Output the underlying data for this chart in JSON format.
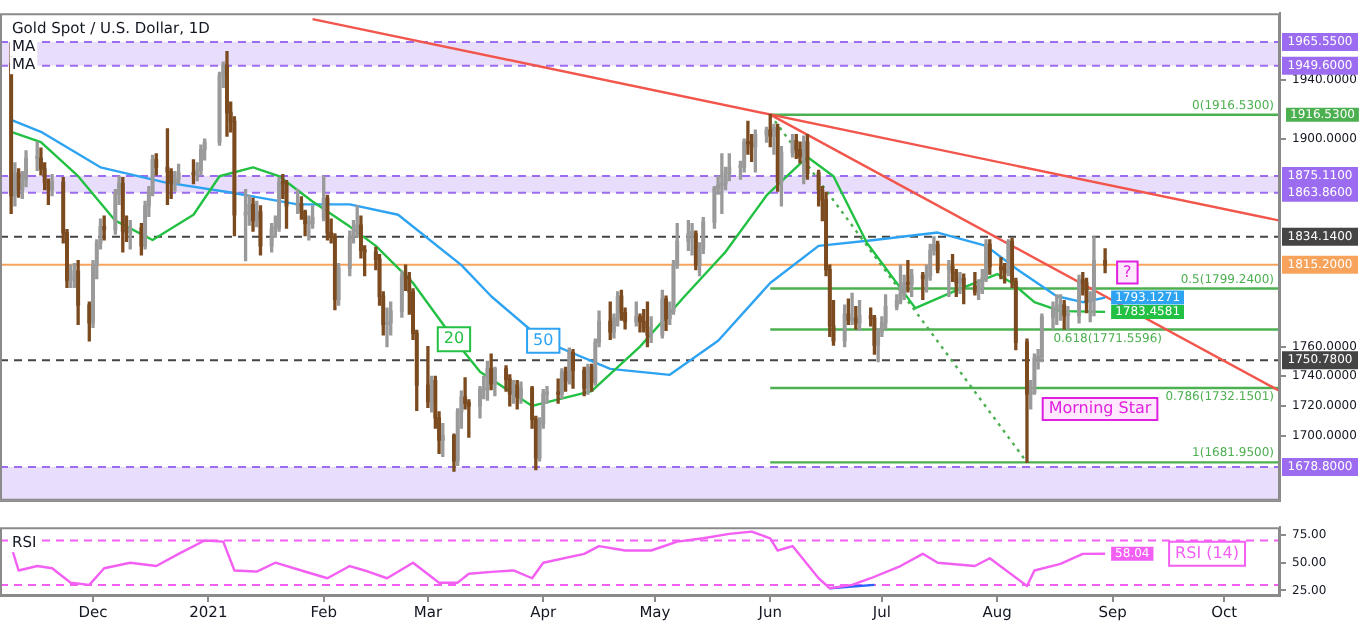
{
  "chart_data": [
    {
      "type": "candlestick",
      "title": "Gold Spot / U.S. Dollar, 1D",
      "annotations": [
        "MA",
        "MA",
        {
          "text": "Morning Star",
          "x": "2021-08-10",
          "y": 1718
        },
        {
          "text": "?",
          "x": "2021-08-30",
          "y": 1810
        }
      ],
      "x": [
        "2020-11-09",
        "2020-11-10",
        "2020-11-11",
        "2020-11-12",
        "2020-11-13",
        "2020-11-16",
        "2020-11-17",
        "2020-11-18",
        "2020-11-19",
        "2020-11-20",
        "2020-11-23",
        "2020-11-24",
        "2020-11-25",
        "2020-11-26",
        "2020-11-27",
        "2020-11-30",
        "2020-12-01",
        "2020-12-02",
        "2020-12-03",
        "2020-12-04",
        "2020-12-07",
        "2020-12-08",
        "2020-12-09",
        "2020-12-10",
        "2020-12-11",
        "2020-12-14",
        "2020-12-15",
        "2020-12-16",
        "2020-12-17",
        "2020-12-18",
        "2020-12-21",
        "2020-12-22",
        "2020-12-23",
        "2020-12-24",
        "2020-12-28",
        "2020-12-29",
        "2020-12-30",
        "2020-12-31",
        "2021-01-04",
        "2021-01-05",
        "2021-01-06",
        "2021-01-07",
        "2021-01-08",
        "2021-01-11",
        "2021-01-12",
        "2021-01-13",
        "2021-01-14",
        "2021-01-15",
        "2021-01-18",
        "2021-01-19",
        "2021-01-20",
        "2021-01-21",
        "2021-01-22",
        "2021-01-25",
        "2021-01-26",
        "2021-01-27",
        "2021-01-28",
        "2021-01-29",
        "2021-02-01",
        "2021-02-02",
        "2021-02-03",
        "2021-02-04",
        "2021-02-05",
        "2021-02-08",
        "2021-02-09",
        "2021-02-10",
        "2021-02-11",
        "2021-02-12",
        "2021-02-15",
        "2021-02-16",
        "2021-02-17",
        "2021-02-18",
        "2021-02-19",
        "2021-02-22",
        "2021-02-23",
        "2021-02-24",
        "2021-02-25",
        "2021-02-26",
        "2021-03-01",
        "2021-03-02",
        "2021-03-03",
        "2021-03-04",
        "2021-03-05",
        "2021-03-08",
        "2021-03-09",
        "2021-03-10",
        "2021-03-11",
        "2021-03-12",
        "2021-03-15",
        "2021-03-16",
        "2021-03-17",
        "2021-03-18",
        "2021-03-19",
        "2021-03-22",
        "2021-03-23",
        "2021-03-24",
        "2021-03-25",
        "2021-03-26",
        "2021-03-29",
        "2021-03-30",
        "2021-03-31",
        "2021-04-01",
        "2021-04-02",
        "2021-04-05",
        "2021-04-06",
        "2021-04-07",
        "2021-04-08",
        "2021-04-09",
        "2021-04-12",
        "2021-04-13",
        "2021-04-14",
        "2021-04-15",
        "2021-04-16",
        "2021-04-19",
        "2021-04-20",
        "2021-04-21",
        "2021-04-22",
        "2021-04-23",
        "2021-04-26",
        "2021-04-27",
        "2021-04-28",
        "2021-04-29",
        "2021-04-30",
        "2021-05-03",
        "2021-05-04",
        "2021-05-05",
        "2021-05-06",
        "2021-05-07",
        "2021-05-10",
        "2021-05-11",
        "2021-05-12",
        "2021-05-13",
        "2021-05-14",
        "2021-05-17",
        "2021-05-18",
        "2021-05-19",
        "2021-05-20",
        "2021-05-21",
        "2021-05-24",
        "2021-05-25",
        "2021-05-26",
        "2021-05-27",
        "2021-05-28",
        "2021-05-31",
        "2021-06-01",
        "2021-06-02",
        "2021-06-03",
        "2021-06-04",
        "2021-06-07",
        "2021-06-08",
        "2021-06-09",
        "2021-06-10",
        "2021-06-11",
        "2021-06-14",
        "2021-06-15",
        "2021-06-16",
        "2021-06-17",
        "2021-06-18",
        "2021-06-21",
        "2021-06-22",
        "2021-06-23",
        "2021-06-24",
        "2021-06-25",
        "2021-06-28",
        "2021-06-29",
        "2021-06-30",
        "2021-07-01",
        "2021-07-02",
        "2021-07-05",
        "2021-07-06",
        "2021-07-07",
        "2021-07-08",
        "2021-07-09",
        "2021-07-12",
        "2021-07-13",
        "2021-07-14",
        "2021-07-15",
        "2021-07-16",
        "2021-07-19",
        "2021-07-20",
        "2021-07-21",
        "2021-07-22",
        "2021-07-23",
        "2021-07-26",
        "2021-07-27",
        "2021-07-28",
        "2021-07-29",
        "2021-07-30",
        "2021-08-02",
        "2021-08-03",
        "2021-08-04",
        "2021-08-05",
        "2021-08-06",
        "2021-08-09",
        "2021-08-10",
        "2021-08-11",
        "2021-08-12",
        "2021-08-13",
        "2021-08-16",
        "2021-08-17",
        "2021-08-18",
        "2021-08-19",
        "2021-08-20",
        "2021-08-23",
        "2021-08-24",
        "2021-08-25",
        "2021-08-26",
        "2021-08-27",
        "2021-08-30"
      ],
      "ohlc": [
        [
          1951,
          1965,
          1850,
          1862
        ],
        [
          1862,
          1884,
          1855,
          1877
        ],
        [
          1877,
          1880,
          1861,
          1866
        ],
        [
          1866,
          1878,
          1860,
          1873
        ],
        [
          1873,
          1892,
          1868,
          1887
        ],
        [
          1887,
          1898,
          1879,
          1887
        ],
        [
          1887,
          1894,
          1876,
          1880
        ],
        [
          1880,
          1884,
          1866,
          1871
        ],
        [
          1871,
          1873,
          1856,
          1866
        ],
        [
          1866,
          1876,
          1862,
          1871
        ],
        [
          1871,
          1874,
          1830,
          1837
        ],
        [
          1837,
          1839,
          1800,
          1805
        ],
        [
          1805,
          1815,
          1800,
          1806
        ],
        [
          1806,
          1816,
          1800,
          1811
        ],
        [
          1811,
          1818,
          1775,
          1788
        ],
        [
          1788,
          1790,
          1764,
          1776
        ],
        [
          1776,
          1818,
          1773,
          1815
        ],
        [
          1815,
          1832,
          1806,
          1830
        ],
        [
          1830,
          1846,
          1826,
          1841
        ],
        [
          1841,
          1848,
          1832,
          1839
        ],
        [
          1839,
          1866,
          1836,
          1863
        ],
        [
          1863,
          1875,
          1856,
          1870
        ],
        [
          1870,
          1874,
          1824,
          1838
        ],
        [
          1838,
          1848,
          1831,
          1837
        ],
        [
          1837,
          1845,
          1826,
          1840
        ],
        [
          1840,
          1843,
          1822,
          1828
        ],
        [
          1828,
          1858,
          1826,
          1855
        ],
        [
          1855,
          1868,
          1848,
          1864
        ],
        [
          1864,
          1889,
          1862,
          1886
        ],
        [
          1886,
          1890,
          1876,
          1881
        ],
        [
          1881,
          1907,
          1856,
          1878
        ],
        [
          1878,
          1880,
          1860,
          1871
        ],
        [
          1871,
          1878,
          1865,
          1873
        ],
        [
          1873,
          1883,
          1870,
          1877
        ],
        [
          1877,
          1886,
          1870,
          1876
        ],
        [
          1876,
          1884,
          1872,
          1879
        ],
        [
          1879,
          1896,
          1876,
          1893
        ],
        [
          1893,
          1900,
          1886,
          1898
        ],
        [
          1898,
          1945,
          1896,
          1943
        ],
        [
          1943,
          1952,
          1935,
          1950
        ],
        [
          1950,
          1959,
          1902,
          1918
        ],
        [
          1918,
          1925,
          1905,
          1912
        ],
        [
          1912,
          1915,
          1835,
          1849
        ],
        [
          1849,
          1866,
          1818,
          1850
        ],
        [
          1850,
          1862,
          1842,
          1856
        ],
        [
          1856,
          1860,
          1838,
          1845
        ],
        [
          1845,
          1858,
          1841,
          1851
        ],
        [
          1851,
          1855,
          1822,
          1828
        ],
        [
          1828,
          1843,
          1824,
          1840
        ],
        [
          1840,
          1848,
          1834,
          1840
        ],
        [
          1840,
          1874,
          1838,
          1871
        ],
        [
          1871,
          1876,
          1860,
          1870
        ],
        [
          1870,
          1872,
          1840,
          1855
        ],
        [
          1855,
          1866,
          1850,
          1856
        ],
        [
          1856,
          1861,
          1846,
          1851
        ],
        [
          1851,
          1852,
          1835,
          1843
        ],
        [
          1843,
          1848,
          1832,
          1843
        ],
        [
          1843,
          1855,
          1840,
          1847
        ],
        [
          1847,
          1875,
          1845,
          1860
        ],
        [
          1860,
          1862,
          1832,
          1837
        ],
        [
          1837,
          1846,
          1830,
          1834
        ],
        [
          1834,
          1836,
          1785,
          1792
        ],
        [
          1792,
          1816,
          1788,
          1813
        ],
        [
          1813,
          1838,
          1808,
          1834
        ],
        [
          1834,
          1845,
          1830,
          1838
        ],
        [
          1838,
          1855,
          1834,
          1842
        ],
        [
          1842,
          1848,
          1820,
          1825
        ],
        [
          1825,
          1828,
          1808,
          1824
        ],
        [
          1824,
          1827,
          1812,
          1819
        ],
        [
          1819,
          1822,
          1788,
          1794
        ],
        [
          1794,
          1797,
          1768,
          1775
        ],
        [
          1775,
          1786,
          1760,
          1776
        ],
        [
          1776,
          1790,
          1768,
          1784
        ],
        [
          1784,
          1811,
          1780,
          1808
        ],
        [
          1808,
          1815,
          1798,
          1806
        ],
        [
          1806,
          1810,
          1782,
          1797
        ],
        [
          1797,
          1799,
          1765,
          1769
        ],
        [
          1769,
          1771,
          1717,
          1734
        ],
        [
          1734,
          1760,
          1719,
          1723
        ],
        [
          1723,
          1740,
          1716,
          1737
        ],
        [
          1737,
          1740,
          1705,
          1712
        ],
        [
          1712,
          1716,
          1688,
          1697
        ],
        [
          1697,
          1708,
          1686,
          1700
        ],
        [
          1700,
          1701,
          1676,
          1683
        ],
        [
          1683,
          1718,
          1680,
          1716
        ],
        [
          1716,
          1730,
          1705,
          1726
        ],
        [
          1726,
          1739,
          1718,
          1722
        ],
        [
          1722,
          1724,
          1699,
          1720
        ],
        [
          1720,
          1733,
          1712,
          1731
        ],
        [
          1731,
          1740,
          1725,
          1732
        ],
        [
          1731,
          1750,
          1724,
          1745
        ],
        [
          1745,
          1755,
          1731,
          1735
        ],
        [
          1735,
          1746,
          1727,
          1745
        ],
        [
          1745,
          1747,
          1730,
          1738
        ],
        [
          1738,
          1741,
          1720,
          1728
        ],
        [
          1728,
          1737,
          1722,
          1734
        ],
        [
          1734,
          1737,
          1718,
          1726
        ],
        [
          1726,
          1736,
          1722,
          1732
        ],
        [
          1732,
          1733,
          1705,
          1711
        ],
        [
          1711,
          1713,
          1677,
          1685
        ],
        [
          1685,
          1712,
          1683,
          1708
        ],
        [
          1708,
          1731,
          1705,
          1728
        ],
        [
          1728,
          1733,
          1722,
          1729
        ],
        [
          1729,
          1738,
          1722,
          1728
        ],
        [
          1728,
          1745,
          1725,
          1743
        ],
        [
          1743,
          1746,
          1730,
          1737
        ],
        [
          1737,
          1759,
          1735,
          1756
        ],
        [
          1756,
          1758,
          1732,
          1744
        ],
        [
          1744,
          1746,
          1727,
          1732
        ],
        [
          1732,
          1748,
          1728,
          1746
        ],
        [
          1746,
          1748,
          1730,
          1736
        ],
        [
          1736,
          1765,
          1734,
          1763
        ],
        [
          1763,
          1784,
          1760,
          1777
        ],
        [
          1777,
          1790,
          1765,
          1770
        ],
        [
          1770,
          1782,
          1766,
          1779
        ],
        [
          1779,
          1797,
          1774,
          1794
        ],
        [
          1794,
          1798,
          1778,
          1783
        ],
        [
          1783,
          1786,
          1772,
          1777
        ],
        [
          1777,
          1790,
          1774,
          1780
        ],
        [
          1780,
          1782,
          1770,
          1777
        ],
        [
          1777,
          1785,
          1770,
          1773
        ],
        [
          1773,
          1790,
          1760,
          1768
        ],
        [
          1768,
          1780,
          1763,
          1769
        ],
        [
          1768,
          1798,
          1766,
          1792
        ],
        [
          1792,
          1794,
          1771,
          1779
        ],
        [
          1779,
          1790,
          1775,
          1784
        ],
        [
          1784,
          1818,
          1782,
          1815
        ],
        [
          1815,
          1843,
          1813,
          1831
        ],
        [
          1831,
          1845,
          1825,
          1836
        ],
        [
          1836,
          1843,
          1822,
          1836
        ],
        [
          1836,
          1838,
          1812,
          1815
        ],
        [
          1815,
          1830,
          1808,
          1826
        ],
        [
          1826,
          1847,
          1823,
          1844
        ],
        [
          1844,
          1868,
          1840,
          1867
        ],
        [
          1867,
          1875,
          1863,
          1869
        ],
        [
          1869,
          1890,
          1850,
          1870
        ],
        [
          1870,
          1881,
          1866,
          1877
        ],
        [
          1877,
          1890,
          1872,
          1881
        ],
        [
          1881,
          1885,
          1873,
          1881
        ],
        [
          1881,
          1900,
          1878,
          1898
        ],
        [
          1898,
          1912,
          1890,
          1897
        ],
        [
          1897,
          1903,
          1885,
          1895
        ],
        [
          1895,
          1906,
          1878,
          1903
        ],
        [
          1903,
          1908,
          1898,
          1906
        ],
        [
          1906,
          1916.53,
          1895,
          1902
        ],
        [
          1902,
          1910,
          1890,
          1908
        ],
        [
          1908,
          1910,
          1865,
          1871
        ],
        [
          1871,
          1895,
          1855,
          1891
        ],
        [
          1891,
          1903,
          1888,
          1899
        ],
        [
          1899,
          1903,
          1887,
          1893
        ],
        [
          1893,
          1898,
          1884,
          1888
        ],
        [
          1888,
          1902,
          1870,
          1898
        ],
        [
          1898,
          1903,
          1873,
          1877
        ],
        [
          1877,
          1879,
          1855,
          1866
        ],
        [
          1866,
          1868,
          1845,
          1859
        ],
        [
          1859,
          1864,
          1808,
          1812
        ],
        [
          1812,
          1815,
          1767,
          1774
        ],
        [
          1774,
          1791,
          1761,
          1764
        ],
        [
          1764,
          1788,
          1760,
          1782
        ],
        [
          1782,
          1792,
          1775,
          1778
        ],
        [
          1778,
          1796,
          1775,
          1779
        ],
        [
          1779,
          1787,
          1772,
          1776
        ],
        [
          1776,
          1791,
          1771,
          1781
        ],
        [
          1781,
          1786,
          1774,
          1779
        ],
        [
          1779,
          1781,
          1755,
          1761
        ],
        [
          1761,
          1772,
          1750,
          1770
        ],
        [
          1770,
          1780,
          1767,
          1776
        ],
        [
          1776,
          1795,
          1772,
          1787
        ],
        [
          1787,
          1795,
          1785,
          1791
        ],
        [
          1791,
          1815,
          1789,
          1796
        ],
        [
          1796,
          1808,
          1792,
          1803
        ],
        [
          1803,
          1818,
          1797,
          1802
        ],
        [
          1802,
          1812,
          1794,
          1808
        ],
        [
          1808,
          1810,
          1792,
          1806
        ],
        [
          1806,
          1815,
          1797,
          1808
        ],
        [
          1808,
          1829,
          1805,
          1825
        ],
        [
          1825,
          1834,
          1822,
          1829
        ],
        [
          1829,
          1831,
          1810,
          1812
        ],
        [
          1812,
          1818,
          1794,
          1814
        ],
        [
          1814,
          1822,
          1804,
          1810
        ],
        [
          1810,
          1812,
          1794,
          1803
        ],
        [
          1803,
          1810,
          1796,
          1806
        ],
        [
          1806,
          1809,
          1789,
          1801
        ],
        [
          1801,
          1810,
          1795,
          1797
        ],
        [
          1797,
          1805,
          1792,
          1799
        ],
        [
          1799,
          1812,
          1796,
          1806
        ],
        [
          1806,
          1832,
          1804,
          1829
        ],
        [
          1829,
          1832,
          1809,
          1814
        ],
        [
          1814,
          1820,
          1806,
          1812
        ],
        [
          1812,
          1816,
          1803,
          1810
        ],
        [
          1810,
          1832,
          1808,
          1831
        ],
        [
          1831,
          1833,
          1800,
          1804
        ],
        [
          1804,
          1806,
          1758,
          1763
        ],
        [
          1763,
          1765,
          1681.95,
          1728
        ],
        [
          1728,
          1737,
          1718,
          1729
        ],
        [
          1729,
          1755,
          1728,
          1752
        ],
        [
          1752,
          1758,
          1745,
          1753
        ],
        [
          1753,
          1782,
          1750,
          1780
        ],
        [
          1780,
          1790,
          1772,
          1786
        ],
        [
          1786,
          1795,
          1775,
          1787
        ],
        [
          1787,
          1795,
          1778,
          1788
        ],
        [
          1788,
          1791,
          1772,
          1781
        ],
        [
          1781,
          1787,
          1772,
          1781
        ],
        [
          1781,
          1808,
          1776,
          1805
        ],
        [
          1805,
          1810,
          1795,
          1803
        ],
        [
          1803,
          1806,
          1783,
          1790
        ],
        [
          1790,
          1797,
          1777,
          1792
        ],
        [
          1792,
          1834,
          1781,
          1818
        ],
        [
          1818,
          1826,
          1810,
          1815.2
        ]
      ],
      "series": [
        {
          "name": "20",
          "type": "line",
          "color": "#22c043",
          "x": [
            "2020-11-09",
            "2020-11-17",
            "2020-11-27",
            "2020-12-07",
            "2020-12-17",
            "2020-12-28",
            "2021-01-04",
            "2021-01-13",
            "2021-01-20",
            "2021-01-29",
            "2021-02-08",
            "2021-02-15",
            "2021-02-25",
            "2021-03-08",
            "2021-03-15",
            "2021-03-29",
            "2021-04-14",
            "2021-04-27",
            "2021-05-09",
            "2021-05-20",
            "2021-05-31",
            "2021-06-11",
            "2021-06-18",
            "2021-06-27",
            "2021-07-10",
            "2021-07-21",
            "2021-08-01",
            "2021-08-05",
            "2021-08-11",
            "2021-08-18",
            "2021-08-30"
          ],
          "values": [
            1905,
            1898,
            1875,
            1845,
            1832,
            1849,
            1875,
            1881,
            1875,
            1858,
            1841,
            1828,
            1803,
            1765,
            1743,
            1720,
            1730,
            1760,
            1794,
            1824,
            1862,
            1888,
            1875,
            1830,
            1786,
            1798,
            1809,
            1803,
            1790,
            1784,
            1783.4581
          ],
          "value_labels": [
            null,
            null,
            null,
            null,
            null,
            null,
            null,
            null,
            null,
            null,
            null,
            null,
            null,
            null,
            null,
            null,
            null,
            null,
            null,
            null,
            null,
            null,
            null,
            null,
            null,
            null,
            null,
            null,
            null,
            null,
            "1783.4581"
          ]
        },
        {
          "name": "50",
          "type": "line",
          "color": "#2ea3f2",
          "x": [
            "2020-11-09",
            "2020-11-17",
            "2020-12-03",
            "2020-12-20",
            "2021-01-07",
            "2021-01-25",
            "2021-02-08",
            "2021-02-21",
            "2021-03-10",
            "2021-03-18",
            "2021-04-01",
            "2021-04-19",
            "2021-05-05",
            "2021-05-18",
            "2021-06-01",
            "2021-06-14",
            "2021-06-29",
            "2021-07-16",
            "2021-07-29",
            "2021-08-07",
            "2021-08-17",
            "2021-08-24",
            "2021-08-30"
          ],
          "values": [
            1913,
            1905,
            1881,
            1871,
            1864,
            1856,
            1856,
            1849,
            1815,
            1794,
            1764,
            1745,
            1741,
            1764,
            1803,
            1828,
            1832,
            1837,
            1828,
            1811,
            1794,
            1790,
            1793.1271
          ],
          "value_labels": [
            null,
            null,
            null,
            null,
            null,
            null,
            null,
            null,
            null,
            null,
            null,
            null,
            null,
            null,
            null,
            null,
            null,
            null,
            null,
            null,
            null,
            null,
            "1793.1271"
          ]
        },
        {
          "type": "line",
          "color": "#f2554b",
          "x": [
            "2021-01-29",
            "2021-10-16"
          ],
          "values": [
            1981,
            1845
          ]
        },
        {
          "type": "line",
          "color": "#f2554b",
          "x": [
            "2021-06-01",
            "2021-10-16"
          ],
          "values": [
            1916.53,
            1730
          ]
        },
        {
          "type": "line",
          "color": "#4caf50",
          "line_style": "dotted",
          "x": [
            "2021-06-01",
            "2021-08-09"
          ],
          "values": [
            1916.53,
            1681.95
          ]
        },
        {
          "name": "0(1916.5300)",
          "type": "line",
          "color": "#4caf50",
          "x": [
            "2021-06-01",
            "2021-10-16"
          ],
          "values": [
            1916.53,
            1916.53
          ],
          "value_labels": [
            null,
            "1916.5300"
          ]
        },
        {
          "name": "0.5(1799.2400)",
          "type": "line",
          "color": "#4caf50",
          "x": [
            "2021-06-01",
            "2021-10-16"
          ],
          "values": [
            1799.24,
            1799.24
          ]
        },
        {
          "name": "0.618(1771.5596)",
          "type": "line",
          "color": "#4caf50",
          "x": [
            "2021-06-01",
            "2021-10-16"
          ],
          "values": [
            1771.5596,
            1771.5596
          ]
        },
        {
          "name": "0.786(1732.1501)",
          "type": "line",
          "color": "#4caf50",
          "x": [
            "2021-06-01",
            "2021-10-16"
          ],
          "values": [
            1732.1501,
            1732.1501
          ]
        },
        {
          "name": "1(1681.9500)",
          "type": "line",
          "color": "#4caf50",
          "x": [
            "2021-06-01",
            "2021-10-16"
          ],
          "values": [
            1681.95,
            1681.95
          ]
        }
      ],
      "bands": [
        {
          "axis": "y",
          "from": 1949.6,
          "to": 1965.55,
          "color": "#e8defb"
        },
        {
          "axis": "y",
          "from": 1863.86,
          "to": 1875.11,
          "color": "#e8defb"
        },
        {
          "axis": "y",
          "from": 1656,
          "to": 1678.8,
          "color": "#e8defb"
        }
      ],
      "ref_lines": [
        {
          "axis": "y",
          "value": 1965.55,
          "color": "#9c6cf0",
          "line_style": "dashed",
          "label": "1965.5500"
        },
        {
          "axis": "y",
          "value": 1949.6,
          "color": "#9c6cf0",
          "line_style": "dashed",
          "label": "1949.6000"
        },
        {
          "axis": "y",
          "value": 1875.11,
          "color": "#9c6cf0",
          "line_style": "dashed",
          "label": "1875.1100"
        },
        {
          "axis": "y",
          "value": 1863.86,
          "color": "#9c6cf0",
          "line_style": "dashed",
          "label": "1863.8600"
        },
        {
          "axis": "y",
          "value": 1678.8,
          "color": "#9c6cf0",
          "line_style": "dashed",
          "label": "1678.8000"
        },
        {
          "axis": "y",
          "value": 1834.14,
          "color": "#444444",
          "line_style": "dashed",
          "label": "1834.1400"
        },
        {
          "axis": "y",
          "value": 1750.78,
          "color": "#444444",
          "line_style": "dashed",
          "label": "1750.7800"
        },
        {
          "axis": "y",
          "value": 1815.2,
          "color": "#f7a35c",
          "line_style": "solid",
          "label": "1815.2000"
        }
      ],
      "xlim": [
        "2020-11-06",
        "2021-10-16"
      ],
      "ylim": [
        1656,
        1985
      ],
      "yticks": [
        {
          "value": 1700,
          "label": "1700.0000"
        },
        {
          "value": 1720,
          "label": "1720.0000"
        },
        {
          "value": 1740,
          "label": "1740.0000"
        },
        {
          "value": 1760,
          "label": "1760.0000"
        },
        {
          "value": 1900,
          "label": "1900.0000"
        },
        {
          "value": 1940,
          "label": "1940.0000"
        }
      ],
      "tick_labels": "y"
    },
    {
      "type": "line",
      "title": "RSI",
      "series": [
        {
          "name": "RSI (14)",
          "type": "line",
          "color": "#f25ff2",
          "x": [
            "2020-11-09",
            "2020-11-11",
            "2020-11-16",
            "2020-11-20",
            "2020-11-25",
            "2020-11-30",
            "2020-12-04",
            "2020-12-11",
            "2020-12-18",
            "2020-12-24",
            "2020-12-31",
            "2021-01-05",
            "2021-01-08",
            "2021-01-14",
            "2021-01-19",
            "2021-01-26",
            "2021-02-02",
            "2021-02-08",
            "2021-02-12",
            "2021-02-18",
            "2021-02-25",
            "2021-03-04",
            "2021-03-09",
            "2021-03-12",
            "2021-03-19",
            "2021-03-24",
            "2021-03-29",
            "2021-04-01",
            "2021-04-12",
            "2021-04-16",
            "2021-04-23",
            "2021-04-30",
            "2021-05-07",
            "2021-05-14",
            "2021-05-21",
            "2021-05-27",
            "2021-06-01",
            "2021-06-03",
            "2021-06-07",
            "2021-06-14",
            "2021-06-17",
            "2021-06-23",
            "2021-06-28",
            "2021-07-06",
            "2021-07-12",
            "2021-07-16",
            "2021-07-26",
            "2021-07-30",
            "2021-08-09",
            "2021-08-11",
            "2021-08-18",
            "2021-08-24",
            "2021-08-30"
          ],
          "values": [
            65,
            43,
            47,
            45,
            32,
            30,
            45,
            50,
            47,
            58,
            70,
            69,
            43,
            42,
            50,
            43,
            36,
            47,
            43,
            36,
            50,
            32,
            32,
            40,
            42,
            43,
            36,
            50,
            58,
            65,
            61,
            61,
            69,
            72,
            76,
            78,
            72,
            61,
            65,
            36,
            27,
            30,
            36,
            47,
            58,
            50,
            47,
            54,
            29,
            43,
            49,
            58,
            58.04
          ],
          "value_labels": [
            null,
            null,
            null,
            null,
            null,
            null,
            null,
            null,
            null,
            null,
            null,
            null,
            null,
            null,
            null,
            null,
            null,
            null,
            null,
            null,
            null,
            null,
            null,
            null,
            null,
            null,
            null,
            null,
            null,
            null,
            null,
            null,
            null,
            null,
            null,
            null,
            null,
            null,
            null,
            null,
            null,
            null,
            null,
            null,
            null,
            null,
            null,
            null,
            null,
            null,
            null,
            null,
            "58.04"
          ]
        },
        {
          "type": "line",
          "color": "#2962ff",
          "x": [
            "2021-06-17",
            "2021-06-29"
          ],
          "values": [
            27,
            30
          ]
        }
      ],
      "ref_lines": [
        {
          "axis": "y",
          "value": 70,
          "color": "#f25ff2",
          "line_style": "dashed"
        },
        {
          "axis": "y",
          "value": 30,
          "color": "#f25ff2",
          "line_style": "dashed"
        }
      ],
      "xlim": [
        "2020-11-06",
        "2021-10-16"
      ],
      "xticks": [
        {
          "value": "2020-12-01",
          "label": "Dec"
        },
        {
          "value": "2021-01-01",
          "label": "2021"
        },
        {
          "value": "2021-02-01",
          "label": "Feb"
        },
        {
          "value": "2021-03-01",
          "label": "Mar"
        },
        {
          "value": "2021-04-01",
          "label": "Apr"
        },
        {
          "value": "2021-05-01",
          "label": "May"
        },
        {
          "value": "2021-06-01",
          "label": "Jun"
        },
        {
          "value": "2021-07-01",
          "label": "Jul"
        },
        {
          "value": "2021-08-01",
          "label": "Aug"
        },
        {
          "value": "2021-09-01",
          "label": "Sep"
        },
        {
          "value": "2021-10-01",
          "label": "Oct"
        }
      ],
      "ylim": [
        20,
        82
      ],
      "yticks": [
        {
          "value": 25,
          "label": "25.00"
        },
        {
          "value": 50,
          "label": "50.00"
        },
        {
          "value": 75,
          "label": "75.00"
        }
      ]
    }
  ]
}
